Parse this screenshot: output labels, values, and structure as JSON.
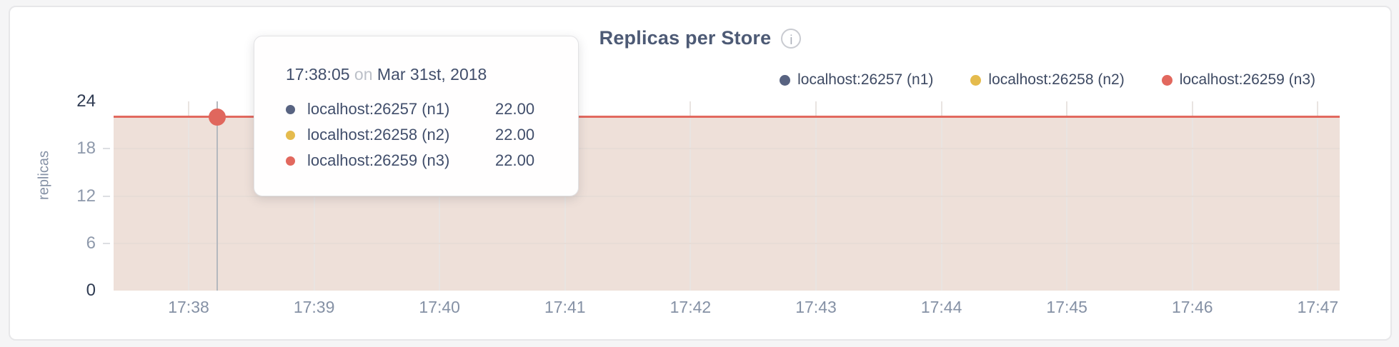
{
  "header": {
    "title": "Replicas per Store",
    "info_icon": "i"
  },
  "legend": {
    "items": [
      {
        "label": "localhost:26257 (n1)",
        "color": "#586381"
      },
      {
        "label": "localhost:26258 (n2)",
        "color": "#e5bb4d"
      },
      {
        "label": "localhost:26259 (n3)",
        "color": "#e2685e"
      }
    ]
  },
  "tooltip": {
    "time": "17:38:05",
    "connector": "on",
    "date": "Mar 31st, 2018",
    "rows": [
      {
        "label": "localhost:26257 (n1)",
        "value": "22.00",
        "color": "#586381"
      },
      {
        "label": "localhost:26258 (n2)",
        "value": "22.00",
        "color": "#e5bb4d"
      },
      {
        "label": "localhost:26259 (n3)",
        "value": "22.00",
        "color": "#e2685e"
      }
    ]
  },
  "colors": {
    "area_fill": "#eee0d9",
    "line": "#e2695f",
    "hover_line": "#b5b8be",
    "hover_dot": "#e0675d"
  },
  "chart_data": {
    "type": "area",
    "title": "Replicas per Store",
    "xlabel": "",
    "ylabel": "replicas",
    "ylim": [
      0,
      24
    ],
    "y_ticks": [
      0,
      6,
      12,
      18,
      24
    ],
    "x_ticks": [
      "17:38",
      "17:39",
      "17:40",
      "17:41",
      "17:42",
      "17:43",
      "17:44",
      "17:45",
      "17:46",
      "17:47"
    ],
    "grid": true,
    "legend_position": "top-right",
    "series": [
      {
        "name": "localhost:26257 (n1)",
        "color": "#586381",
        "values": [
          22,
          22,
          22,
          22,
          22,
          22,
          22,
          22,
          22,
          22
        ]
      },
      {
        "name": "localhost:26258 (n2)",
        "color": "#e5bb4d",
        "values": [
          22,
          22,
          22,
          22,
          22,
          22,
          22,
          22,
          22,
          22
        ]
      },
      {
        "name": "localhost:26259 (n3)",
        "color": "#e2685e",
        "values": [
          22,
          22,
          22,
          22,
          22,
          22,
          22,
          22,
          22,
          22
        ]
      }
    ],
    "hover": {
      "time": "17:38:05",
      "date": "Mar 31st, 2018",
      "values": [
        22,
        22,
        22
      ]
    }
  }
}
